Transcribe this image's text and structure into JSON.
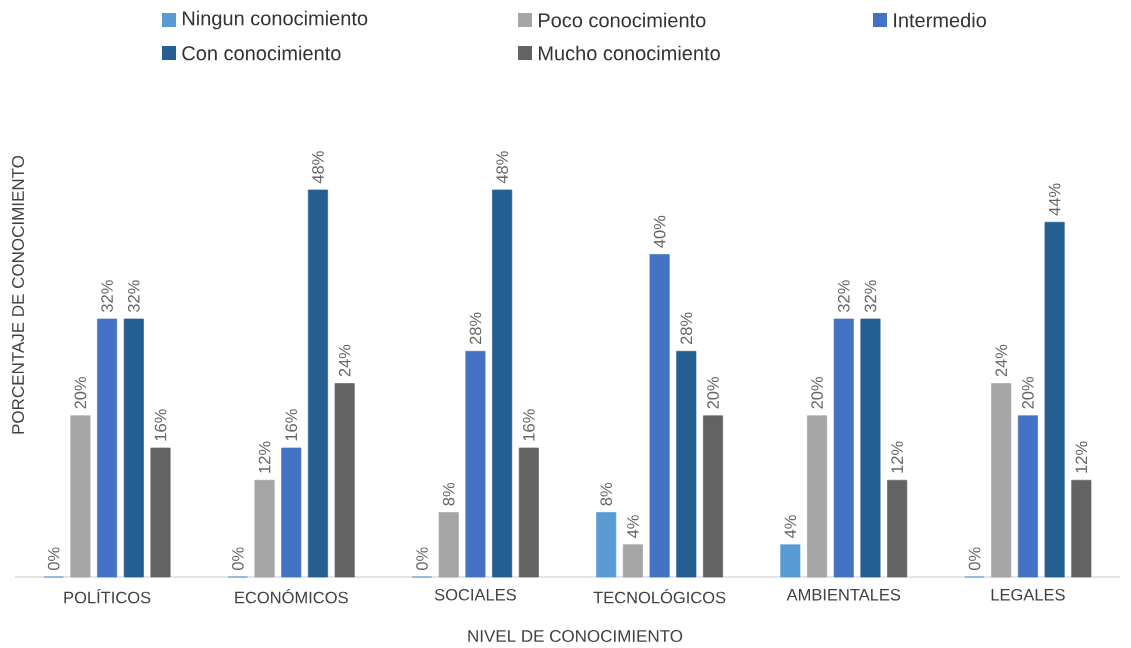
{
  "chart_data": {
    "type": "bar",
    "xlabel": "NIVEL DE CONOCIMIENTO",
    "ylabel": "PORCENTAJE DE CONOCIMIENTO",
    "categories": [
      "POLÍTICOS",
      "ECONÓMICOS",
      "SOCIALES",
      "TECNOLÓGICOS",
      "AMBIENTALES",
      "LEGALES"
    ],
    "legend": "top",
    "series": [
      {
        "name": "Ningun conocimiento",
        "color": "#5b9bd5",
        "values": [
          0,
          0,
          0,
          8,
          4,
          0
        ],
        "value_labels": [
          "0%",
          "0%",
          "0%",
          "8%",
          "4%",
          "0%"
        ]
      },
      {
        "name": "Poco conocimiento",
        "color": "#a5a5a5",
        "values": [
          20,
          12,
          8,
          4,
          20,
          24
        ],
        "value_labels": [
          "20%",
          "12%",
          "8%",
          "4%",
          "20%",
          "24%"
        ]
      },
      {
        "name": "Intermedio",
        "color": "#4472c4",
        "values": [
          32,
          16,
          28,
          40,
          32,
          20
        ],
        "value_labels": [
          "32%",
          "16%",
          "28%",
          "40%",
          "32%",
          "20%"
        ]
      },
      {
        "name": "Con conocimiento",
        "color": "#255e91",
        "values": [
          32,
          48,
          48,
          28,
          32,
          44
        ],
        "value_labels": [
          "32%",
          "48%",
          "48%",
          "28%",
          "32%",
          "44%"
        ]
      },
      {
        "name": "Mucho conocimiento",
        "color": "#636363",
        "values": [
          16,
          24,
          16,
          20,
          12,
          12
        ],
        "value_labels": [
          "16%",
          "24%",
          "16%",
          "20%",
          "12%",
          "12%"
        ]
      }
    ]
  }
}
